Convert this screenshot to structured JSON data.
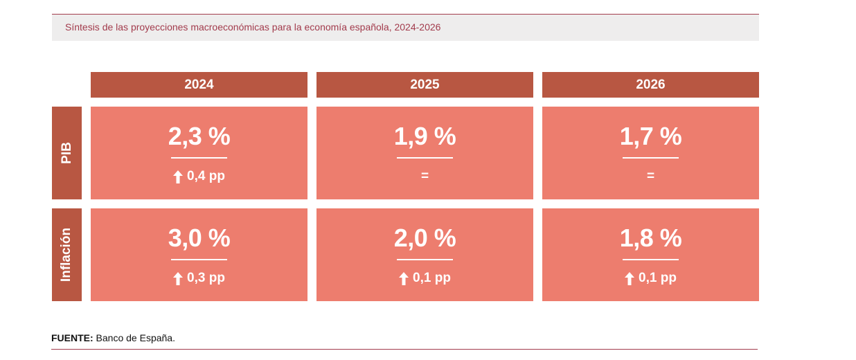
{
  "title": "Síntesis de las proyecciones macroeconómicas para la economía española, 2024-2026",
  "colors": {
    "header_bg": "#b85742",
    "cell_bg": "#ed7d6e",
    "title_bg": "#eeeded",
    "accent": "#a23b4c"
  },
  "chart_data": {
    "type": "table",
    "columns": [
      "2024",
      "2025",
      "2026"
    ],
    "rows": [
      {
        "label": "PIB",
        "cells": [
          {
            "value": "2,3 %",
            "change": "0,4 pp",
            "arrow": "up"
          },
          {
            "value": "1,9 %",
            "change": "=",
            "arrow": "none"
          },
          {
            "value": "1,7 %",
            "change": "=",
            "arrow": "none"
          }
        ]
      },
      {
        "label": "Inflación",
        "cells": [
          {
            "value": "3,0 %",
            "change": "0,3 pp",
            "arrow": "up"
          },
          {
            "value": "2,0 %",
            "change": "0,1 pp",
            "arrow": "up"
          },
          {
            "value": "1,8 %",
            "change": "0,1 pp",
            "arrow": "up"
          }
        ]
      }
    ]
  },
  "source": {
    "label": "FUENTE:",
    "text": " Banco de España."
  }
}
